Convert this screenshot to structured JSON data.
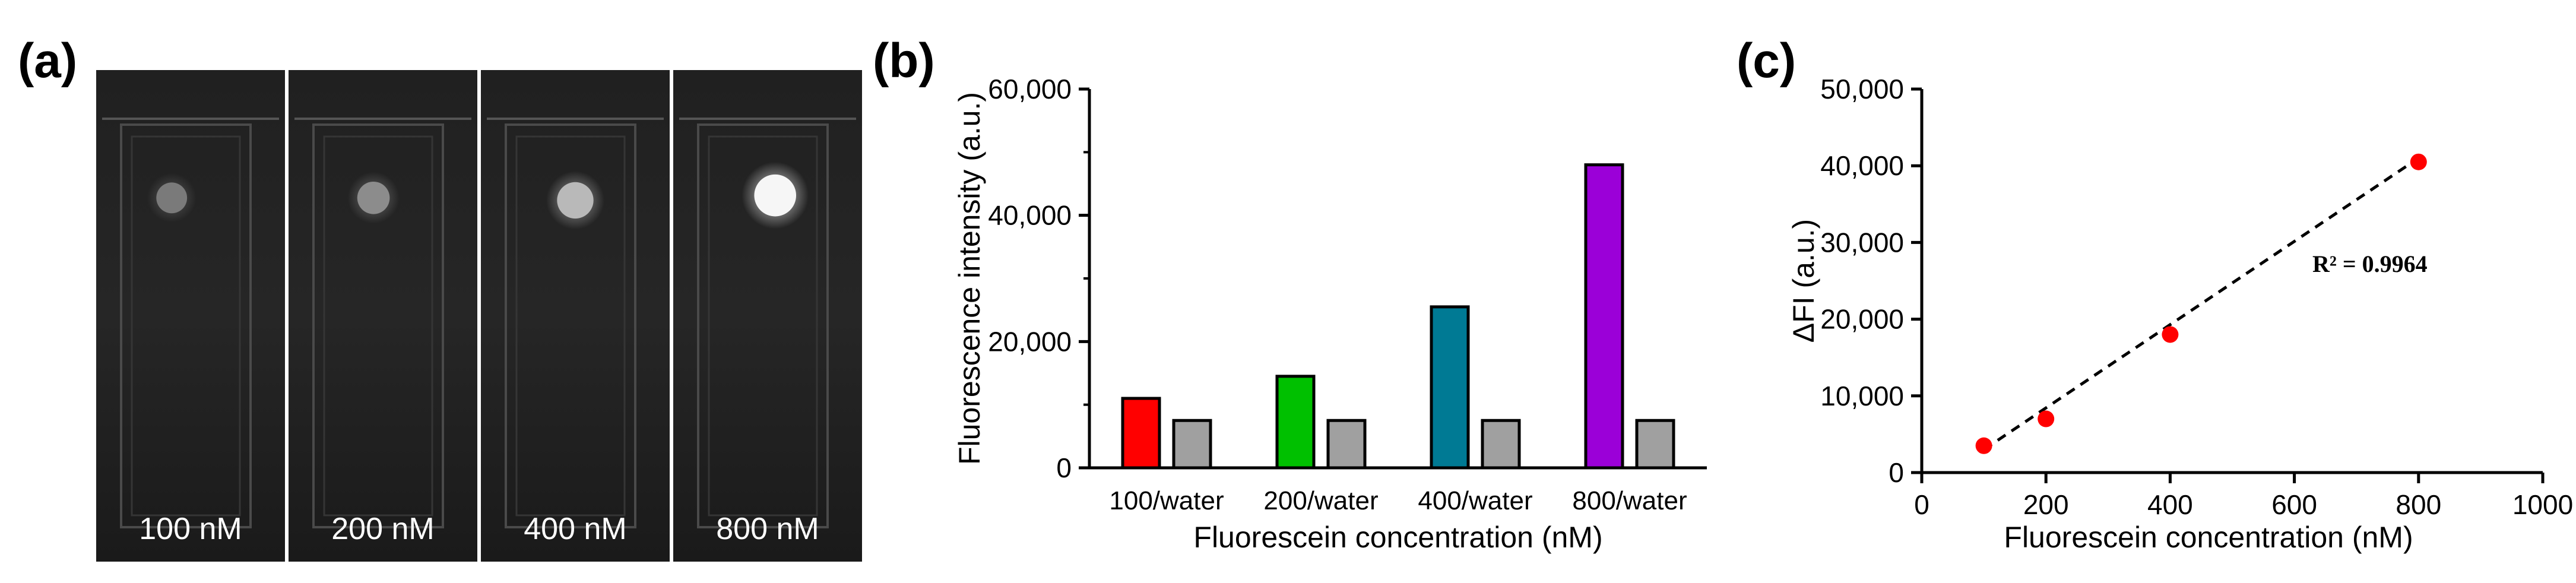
{
  "panels": {
    "a": {
      "label": "(a)",
      "images": [
        {
          "caption": "100 nM",
          "spot_intensity": 0.28
        },
        {
          "caption": "200 nM",
          "spot_intensity": 0.38
        },
        {
          "caption": "400 nM",
          "spot_intensity": 0.62
        },
        {
          "caption": "800 nM",
          "spot_intensity": 0.95
        }
      ]
    },
    "b": {
      "label": "(b)"
    },
    "c": {
      "label": "(c)",
      "annotation": "R² = 0.9964"
    }
  },
  "chart_data": [
    {
      "type": "bar",
      "xlabel": "Fluorescein concentration (nM)",
      "ylabel": "Fluorescence intensity (a.u.)",
      "ylim": [
        0,
        60000
      ],
      "yticks": [
        "0",
        "20,000",
        "40,000",
        "60,000"
      ],
      "yticks_values": [
        0,
        20000,
        40000,
        60000
      ],
      "categories": [
        "100/water",
        "200/water",
        "400/water",
        "800/water"
      ],
      "series": [
        {
          "values": [
            11000,
            14500,
            25500,
            48000
          ],
          "colors": [
            "#ff0000",
            "#00c000",
            "#007a94",
            "#9b00d8"
          ]
        },
        {
          "values": [
            7500,
            7500,
            7500,
            7500
          ],
          "colors": [
            "#a0a0a0",
            "#a0a0a0",
            "#a0a0a0",
            "#a0a0a0"
          ]
        }
      ]
    },
    {
      "type": "scatter",
      "xlabel": "Fluorescein concentration (nM)",
      "ylabel": "ΔFI (a.u.)",
      "xlim": [
        0,
        1000
      ],
      "ylim": [
        0,
        50000
      ],
      "xticks": [
        "0",
        "200",
        "400",
        "600",
        "800",
        "1000"
      ],
      "xticks_values": [
        0,
        200,
        400,
        600,
        800,
        1000
      ],
      "yticks": [
        "0",
        "10,000",
        "20,000",
        "30,000",
        "40,000",
        "50,000"
      ],
      "yticks_values": [
        0,
        10000,
        20000,
        30000,
        40000,
        50000
      ],
      "points": {
        "x": [
          100,
          200,
          400,
          800
        ],
        "y": [
          3500,
          7000,
          18000,
          40500
        ]
      },
      "point_color": "#ff0000",
      "fit_line": {
        "x": [
          100,
          800
        ],
        "y": [
          3000,
          41000
        ]
      }
    }
  ]
}
